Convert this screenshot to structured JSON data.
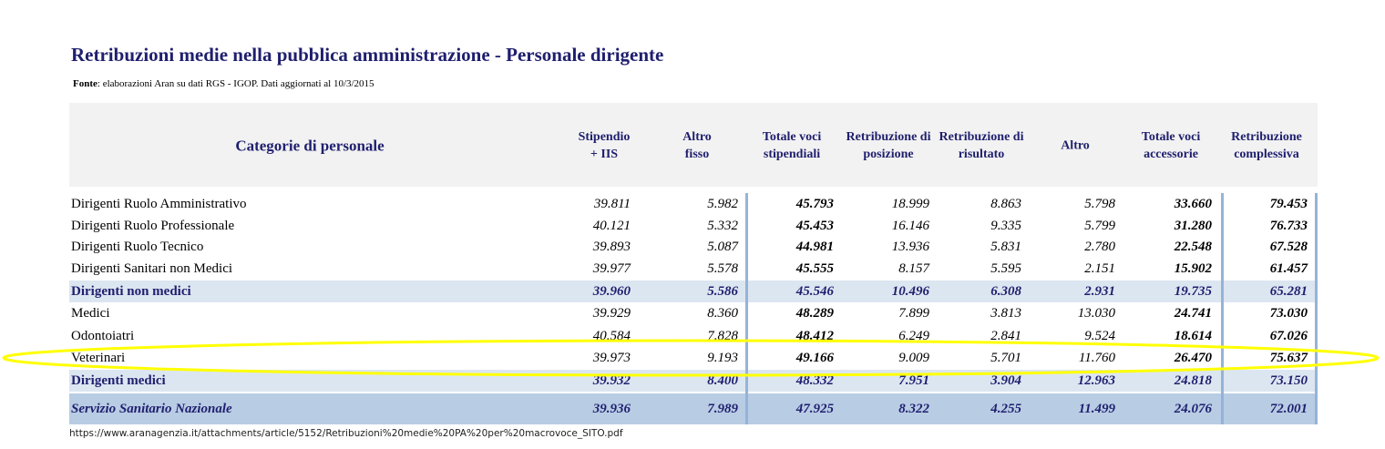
{
  "header": {
    "title": "Retribuzioni medie nella pubblica amministrazione - Personale dirigente",
    "source_label": "Fonte",
    "source_text": ": elaborazioni Aran su dati RGS - IGOP. Dati aggiornati al 10/3/2015"
  },
  "table": {
    "columns": [
      "Categorie di personale",
      "Stipendio\n+ IIS",
      "Altro\nfisso",
      "Totale voci\nstipendiali",
      "Retribuzione di\nposizione",
      "Retribuzione di\nrisultato",
      "Altro",
      "Totale voci\naccessorie",
      "Retribuzione\ncomplessiva"
    ],
    "rows": [
      [
        "Dirigenti Ruolo Amministrativo",
        "39.811",
        "5.982",
        "45.793",
        "18.999",
        "8.863",
        "5.798",
        "33.660",
        "79.453"
      ],
      [
        "Dirigenti Ruolo Professionale",
        "40.121",
        "5.332",
        "45.453",
        "16.146",
        "9.335",
        "5.799",
        "31.280",
        "76.733"
      ],
      [
        "Dirigenti Ruolo Tecnico",
        "39.893",
        "5.087",
        "44.981",
        "13.936",
        "5.831",
        "2.780",
        "22.548",
        "67.528"
      ],
      [
        "Dirigenti Sanitari non Medici",
        "39.977",
        "5.578",
        "45.555",
        "8.157",
        "5.595",
        "2.151",
        "15.902",
        "61.457"
      ],
      [
        "Dirigenti non medici",
        "39.960",
        "5.586",
        "45.546",
        "10.496",
        "6.308",
        "2.931",
        "19.735",
        "65.281"
      ],
      [
        "Medici",
        "39.929",
        "8.360",
        "48.289",
        "7.899",
        "3.813",
        "13.030",
        "24.741",
        "73.030"
      ],
      [
        "Odontoiatri",
        "40.584",
        "7.828",
        "48.412",
        "6.249",
        "2.841",
        "9.524",
        "18.614",
        "67.026"
      ],
      [
        "Veterinari",
        "39.973",
        "9.193",
        "49.166",
        "9.009",
        "5.701",
        "11.760",
        "26.470",
        "75.637"
      ],
      [
        "Dirigenti medici",
        "39.932",
        "8.400",
        "48.332",
        "7.951",
        "3.904",
        "12.963",
        "24.818",
        "73.150"
      ],
      [
        "Servizio Sanitario Nazionale",
        "39.936",
        "7.989",
        "47.925",
        "8.322",
        "4.255",
        "11.499",
        "24.076",
        "72.001"
      ]
    ]
  },
  "footer": {
    "url": "https://www.aranagenzia.it/attachments/article/5152/Retribuzioni%20medie%20PA%20per%20macrovoce_SITO.pdf"
  }
}
